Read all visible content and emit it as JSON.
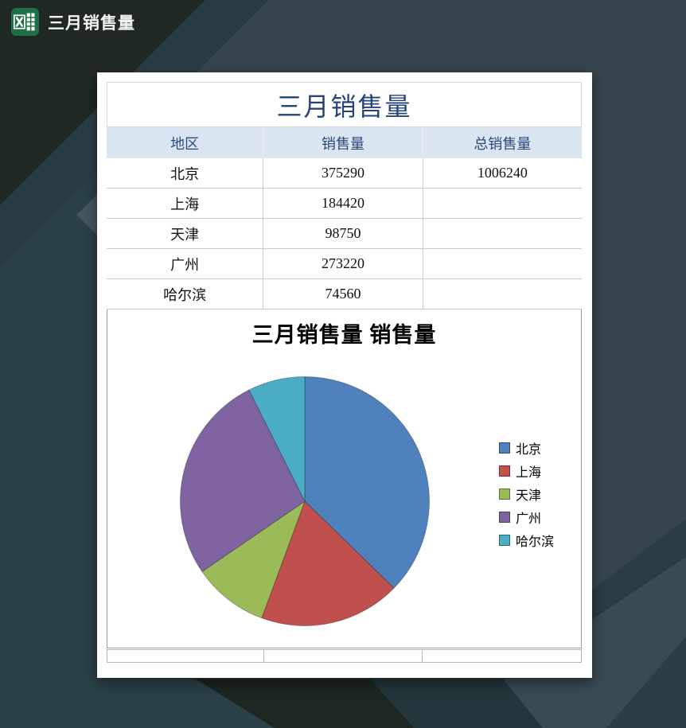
{
  "titlebar": {
    "icon": "excel-logo",
    "title": "三月销售量"
  },
  "report": {
    "title": "三月销售量",
    "table": {
      "columns": [
        "地区",
        "销售量",
        "总销售量"
      ],
      "rows": [
        {
          "region": "北京",
          "sales": "375290",
          "total": "1006240"
        },
        {
          "region": "上海",
          "sales": "184420",
          "total": ""
        },
        {
          "region": "天津",
          "sales": "98750",
          "total": ""
        },
        {
          "region": "广州",
          "sales": "273220",
          "total": ""
        },
        {
          "region": "哈尔滨",
          "sales": "74560",
          "total": ""
        }
      ]
    }
  },
  "chart_data": {
    "type": "pie",
    "title": "三月销售量 销售量",
    "categories": [
      "北京",
      "上海",
      "天津",
      "广州",
      "哈尔滨"
    ],
    "values": [
      375290,
      184420,
      98750,
      273220,
      74560
    ],
    "total": 1006240,
    "colors": [
      "#4F81BD",
      "#C0504D",
      "#9BBB59",
      "#8064A2",
      "#4BACC6"
    ],
    "start_angle_deg": 0,
    "direction": "clockwise",
    "legend_position": "right"
  },
  "ui_colors": {
    "title_navy": "#25437A",
    "header_bg": "#DBE5F1",
    "header_text": "#2B4A7D",
    "excel_green": "#1E7145",
    "bg_slate": "#36454E",
    "bg_charcoal": "#202823",
    "bg_teal": "#2B4047"
  }
}
